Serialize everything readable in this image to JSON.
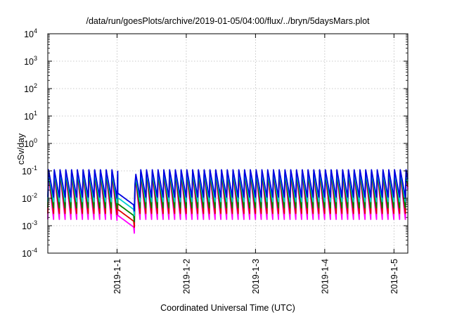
{
  "chart_data": {
    "type": "line",
    "title": "/data/run/goesPlots/archive/2019-01-05/04:00/flux/../bryn/5daysMars.plot",
    "xlabel": "Coordinated Universal Time (UTC)",
    "ylabel": "cSv/day",
    "y_scale": "log",
    "ylim": [
      0.0001,
      10000
    ],
    "xlim_days": [
      0,
      5.2
    ],
    "grid": true,
    "legend": "none",
    "y_ticks": [
      {
        "value": 0.0001,
        "base": "10",
        "exp": "-4"
      },
      {
        "value": 0.001,
        "base": "10",
        "exp": "-3"
      },
      {
        "value": 0.01,
        "base": "10",
        "exp": "-2"
      },
      {
        "value": 0.1,
        "base": "10",
        "exp": "-1"
      },
      {
        "value": 1,
        "base": "10",
        "exp": "0"
      },
      {
        "value": 10,
        "base": "10",
        "exp": "1"
      },
      {
        "value": 100,
        "base": "10",
        "exp": "2"
      },
      {
        "value": 1000,
        "base": "10",
        "exp": "3"
      },
      {
        "value": 10000,
        "base": "10",
        "exp": "4"
      }
    ],
    "x_ticks": [
      {
        "label": "2019-1-1",
        "day": 1
      },
      {
        "label": "2019-1-2",
        "day": 2
      },
      {
        "label": "2019-1-3",
        "day": 3
      },
      {
        "label": "2019-1-4",
        "day": 4
      },
      {
        "label": "2019-1-5",
        "day": 5
      }
    ],
    "cycle_period_days": 0.0833,
    "dip": {
      "start_day": 0.98,
      "end_day": 1.26,
      "min_factor": 0.3
    },
    "series": [
      {
        "color": "#ff00ff",
        "peak": 0.075,
        "trough": 0.0017
      },
      {
        "color": "#e00000",
        "peak": 0.08,
        "trough": 0.0028
      },
      {
        "color": "#008000",
        "peak": 0.085,
        "trough": 0.0045
      },
      {
        "color": "#00d0d0",
        "peak": 0.095,
        "trough": 0.0075
      },
      {
        "color": "#0000e0",
        "peak": 0.11,
        "trough": 0.011
      }
    ]
  }
}
